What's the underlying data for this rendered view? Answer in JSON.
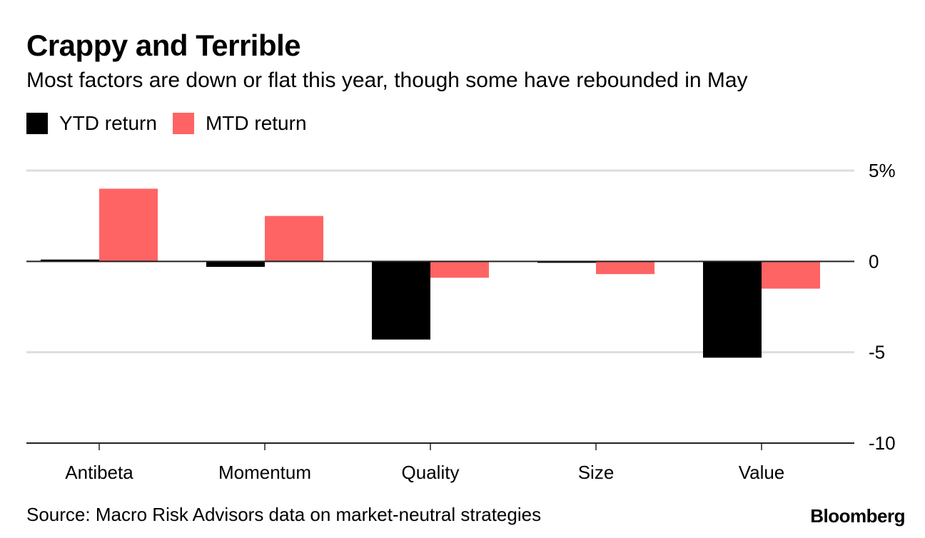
{
  "header": {
    "title": "Crappy and Terrible",
    "subtitle": "Most factors are down or flat this year, though some have rebounded in May"
  },
  "footer": {
    "source": "Source: Macro Risk Advisors data on market-neutral strategies",
    "brand": "Bloomberg"
  },
  "colors": {
    "ytd": "#000000",
    "mtd": "#ff6464",
    "grid": "#dddddd",
    "axis": "#222222"
  },
  "chart_data": {
    "type": "bar",
    "title": "Crappy and Terrible",
    "subtitle": "Most factors are down or flat this year, though some have rebounded in May",
    "xlabel": "",
    "ylabel": "",
    "categories": [
      "Antibeta",
      "Momentum",
      "Quality",
      "Size",
      "Value"
    ],
    "series": [
      {
        "name": "YTD return",
        "color": "#000000",
        "values": [
          0.1,
          -0.3,
          -4.3,
          -0.05,
          -5.3
        ]
      },
      {
        "name": "MTD return",
        "color": "#ff6464",
        "values": [
          4.0,
          2.5,
          -0.9,
          -0.7,
          -1.5
        ]
      }
    ],
    "ylim": [
      -10,
      5
    ],
    "yticks": [
      5,
      0,
      -5,
      -10
    ],
    "ytick_labels": [
      "5%",
      "0",
      "-5",
      "-10"
    ],
    "grid": true,
    "y_axis_side": "right",
    "legend_placement": "top-left"
  }
}
